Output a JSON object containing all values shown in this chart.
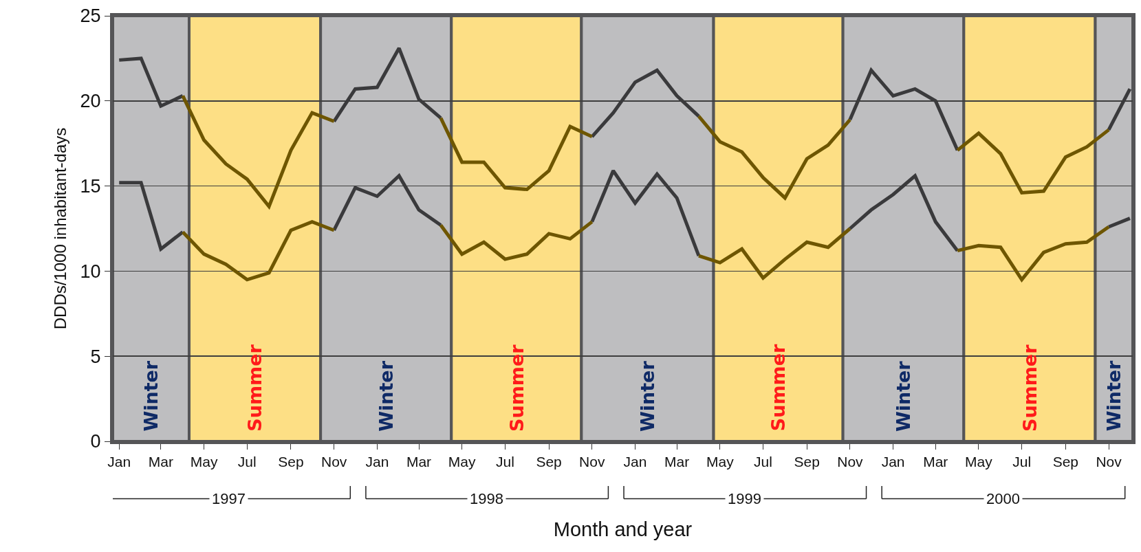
{
  "chart_data": {
    "type": "line",
    "xlabel": "Month and year",
    "ylabel": "DDDs/1000 inhabitant-days",
    "x": [
      "1997-01",
      "1997-02",
      "1997-03",
      "1997-04",
      "1997-05",
      "1997-06",
      "1997-07",
      "1997-08",
      "1997-09",
      "1997-10",
      "1997-11",
      "1997-12",
      "1998-01",
      "1998-02",
      "1998-03",
      "1998-04",
      "1998-05",
      "1998-06",
      "1998-07",
      "1998-08",
      "1998-09",
      "1998-10",
      "1998-11",
      "1998-12",
      "1999-01",
      "1999-02",
      "1999-03",
      "1999-04",
      "1999-05",
      "1999-06",
      "1999-07",
      "1999-08",
      "1999-09",
      "1999-10",
      "1999-11",
      "1999-12",
      "2000-01",
      "2000-02",
      "2000-03",
      "2000-04",
      "2000-05",
      "2000-06",
      "2000-07",
      "2000-08",
      "2000-09",
      "2000-10",
      "2000-11",
      "2000-12"
    ],
    "series": [
      {
        "color": "#3a3a3c",
        "values": [
          22.4,
          22.5,
          19.7,
          20.3,
          null,
          null,
          null,
          null,
          null,
          null,
          18.8,
          20.7,
          20.8,
          23.1,
          20.1,
          19.0,
          null,
          null,
          null,
          null,
          null,
          null,
          17.9,
          19.3,
          21.1,
          21.8,
          20.3,
          19.1,
          null,
          null,
          null,
          null,
          null,
          null,
          18.9,
          21.8,
          20.3,
          20.7,
          20.0,
          17.1,
          null,
          null,
          null,
          null,
          null,
          null,
          18.3,
          20.7
        ]
      },
      {
        "color": "#6e5600",
        "values": [
          null,
          null,
          null,
          20.3,
          17.7,
          16.3,
          15.4,
          13.8,
          17.1,
          19.3,
          18.8,
          null,
          null,
          null,
          null,
          19.0,
          16.4,
          16.4,
          14.9,
          14.8,
          15.9,
          18.5,
          17.9,
          null,
          null,
          null,
          null,
          19.1,
          17.6,
          17.0,
          15.5,
          14.3,
          16.6,
          17.4,
          18.9,
          null,
          null,
          null,
          null,
          17.1,
          18.1,
          16.9,
          14.6,
          14.7,
          16.7,
          17.3,
          18.3,
          null
        ]
      },
      {
        "color": "#3a3a3c",
        "values": [
          15.2,
          15.2,
          11.3,
          12.3,
          null,
          null,
          null,
          null,
          null,
          null,
          12.4,
          14.9,
          14.4,
          15.6,
          13.6,
          12.7,
          null,
          null,
          null,
          null,
          null,
          null,
          12.9,
          15.9,
          14.0,
          15.7,
          14.3,
          10.9,
          null,
          null,
          null,
          null,
          null,
          null,
          12.5,
          13.6,
          14.5,
          15.6,
          12.9,
          11.2,
          null,
          null,
          null,
          null,
          null,
          null,
          12.6,
          13.1
        ]
      },
      {
        "color": "#6e5600",
        "values": [
          null,
          null,
          null,
          12.3,
          11.0,
          10.4,
          9.5,
          9.9,
          12.4,
          12.9,
          12.4,
          null,
          null,
          null,
          null,
          12.7,
          11.0,
          11.7,
          10.7,
          11.0,
          12.2,
          11.9,
          12.9,
          null,
          null,
          null,
          null,
          10.9,
          10.5,
          11.3,
          9.6,
          10.7,
          11.7,
          11.4,
          12.5,
          null,
          null,
          null,
          null,
          11.2,
          11.5,
          11.4,
          9.5,
          11.1,
          11.6,
          11.7,
          12.6,
          null
        ]
      }
    ],
    "xlim": [
      "1996-12-23",
      "2000-12-05"
    ],
    "xticks": [
      {
        "value": "1997-01",
        "label": "Jan"
      },
      {
        "value": "1997-03",
        "label": "Mar"
      },
      {
        "value": "1997-05",
        "label": "May"
      },
      {
        "value": "1997-07",
        "label": "Jul"
      },
      {
        "value": "1997-09",
        "label": "Sep"
      },
      {
        "value": "1997-11",
        "label": "Nov"
      },
      {
        "value": "1998-01",
        "label": "Jan"
      },
      {
        "value": "1998-03",
        "label": "Mar"
      },
      {
        "value": "1998-05",
        "label": "May"
      },
      {
        "value": "1998-07",
        "label": "Jul"
      },
      {
        "value": "1998-09",
        "label": "Sep"
      },
      {
        "value": "1998-11",
        "label": "Nov"
      },
      {
        "value": "1999-01",
        "label": "Jan"
      },
      {
        "value": "1999-03",
        "label": "Mar"
      },
      {
        "value": "1999-05",
        "label": "May"
      },
      {
        "value": "1999-07",
        "label": "Jul"
      },
      {
        "value": "1999-09",
        "label": "Sep"
      },
      {
        "value": "1999-11",
        "label": "Nov"
      },
      {
        "value": "2000-01",
        "label": "Jan"
      },
      {
        "value": "2000-03",
        "label": "Mar"
      },
      {
        "value": "2000-05",
        "label": "May"
      },
      {
        "value": "2000-07",
        "label": "Jul"
      },
      {
        "value": "2000-09",
        "label": "Sep"
      },
      {
        "value": "2000-11",
        "label": "Nov"
      }
    ],
    "ylim": [
      0,
      25
    ],
    "yticks": [
      0,
      5,
      10,
      15,
      20,
      25
    ],
    "grid": "y",
    "marker": "none",
    "line_style": "solid",
    "bands": [
      {
        "axis": "x",
        "from": "1996-12-23",
        "to": "1997-04-10",
        "label": "Winter",
        "color": "#bebec0"
      },
      {
        "axis": "x",
        "from": "1997-04-10",
        "to": "1997-10-13",
        "label": "Summer",
        "color": "#fddf85"
      },
      {
        "axis": "x",
        "from": "1997-10-13",
        "to": "1998-04-16",
        "label": "Winter",
        "color": "#bebec0"
      },
      {
        "axis": "x",
        "from": "1998-04-16",
        "to": "1998-10-17",
        "label": "Summer",
        "color": "#fddf85"
      },
      {
        "axis": "x",
        "from": "1998-10-17",
        "to": "1999-04-22",
        "label": "Winter",
        "color": "#bebec0"
      },
      {
        "axis": "x",
        "from": "1999-04-22",
        "to": "1999-10-22",
        "label": "Summer",
        "color": "#fddf85"
      },
      {
        "axis": "x",
        "from": "1999-10-22",
        "to": "2000-04-10",
        "label": "Winter",
        "color": "#bebec0"
      },
      {
        "axis": "x",
        "from": "2000-04-10",
        "to": "2000-10-13",
        "label": "Summer",
        "color": "#fddf85"
      },
      {
        "axis": "x",
        "from": "2000-10-13",
        "to": "2000-12-05",
        "label": "Winter",
        "color": "#bebec0"
      }
    ],
    "annotations": [
      "1997",
      "1998",
      "1999",
      "2000"
    ]
  }
}
